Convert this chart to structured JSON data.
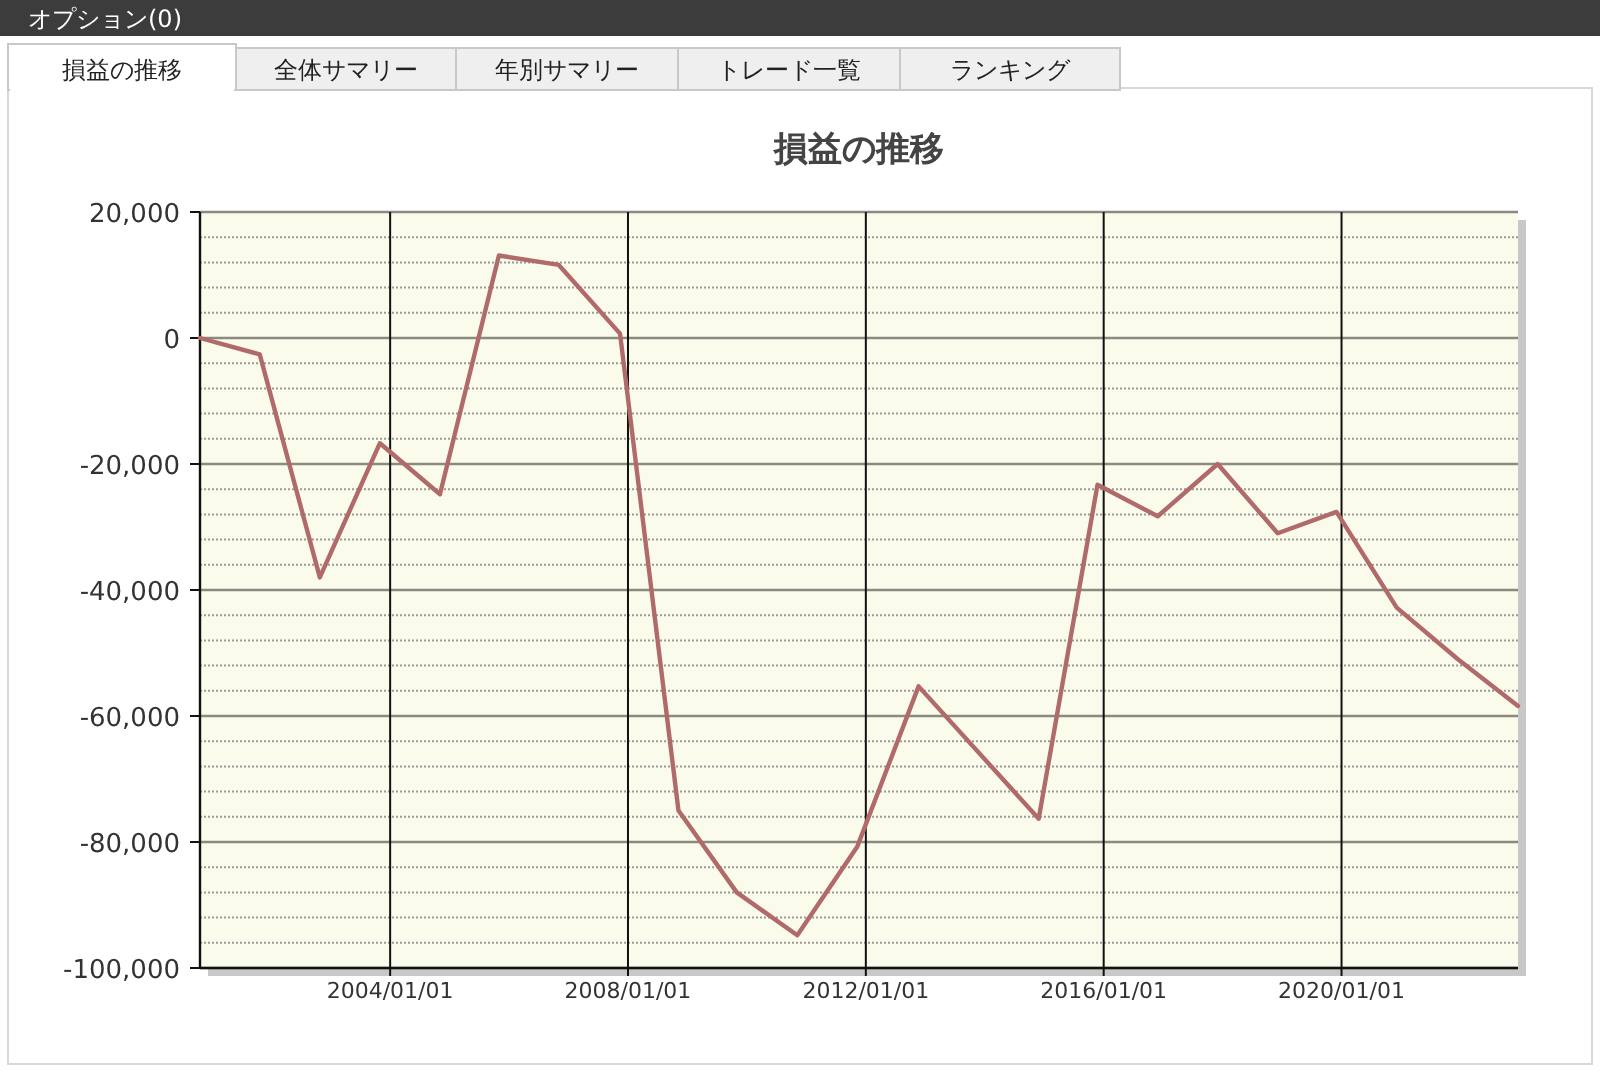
{
  "chart_data": {
    "type": "line",
    "title": "損益の推移",
    "annotations": [
      "オプション(0)",
      "損益の推移",
      "全体サマリー",
      "年別サマリー",
      "トレード一覧",
      "ランキング"
    ],
    "x": [
      "2000-10-20",
      "2001-10-22",
      "2002-10-26",
      "2003-10-30",
      "2004-11-02",
      "2005-10-30",
      "2006-11-02",
      "2007-11-13",
      "2008-11-06",
      "2009-10-30",
      "2010-11-06",
      "2011-11-10",
      "2012-11-20",
      "2014-11-28",
      "2015-11-24",
      "2016-11-28",
      "2017-12-01",
      "2018-12-05",
      "2019-12-01",
      "2020-12-05",
      "2021-12-16",
      "2022-12-20"
    ],
    "series": [
      {
        "color": "#b06a6a",
        "values": [
          0,
          -2600,
          -38000,
          -16700,
          -24800,
          13100,
          11600,
          700,
          -75000,
          -88000,
          -94800,
          -80700,
          -55300,
          -76300,
          -23300,
          -28300,
          -20000,
          -31000,
          -27600,
          -42800,
          -51000,
          -58400
        ]
      }
    ],
    "xlim": [
      "2000-10-20",
      "2022-12-20"
    ],
    "xticks": [
      {
        "value": "2004-01-01",
        "label": "2004/01/01"
      },
      {
        "value": "2008-01-01",
        "label": "2008/01/01"
      },
      {
        "value": "2012-01-01",
        "label": "2012/01/01"
      },
      {
        "value": "2016-01-01",
        "label": "2016/01/01"
      },
      {
        "value": "2020-01-01",
        "label": "2020/01/01"
      }
    ],
    "ylim": [
      -100000,
      20000
    ],
    "yticks": [
      {
        "value": 20000,
        "label": "20,000"
      },
      {
        "value": 0,
        "label": "0"
      },
      {
        "value": -20000,
        "label": "-20,000"
      },
      {
        "value": -40000,
        "label": "-40,000"
      },
      {
        "value": -60000,
        "label": "-60,000"
      },
      {
        "value": -80000,
        "label": "-80,000"
      },
      {
        "value": -100000,
        "label": "-100,000"
      }
    ],
    "grid": true,
    "marker": "none",
    "line_style": "solid"
  }
}
